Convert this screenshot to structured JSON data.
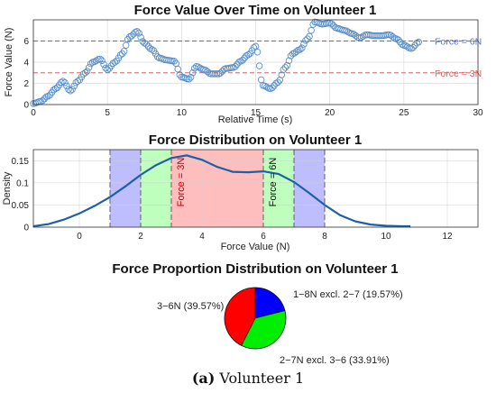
{
  "caption": {
    "tag": "(a)",
    "text": " Volunteer 1"
  },
  "colors": {
    "series": "#5b8fc7",
    "kde": "#1f5fa8",
    "ref_6n": "#5a6fc9",
    "ref_3n": "#e06060",
    "band_outer": "#b3b3ff",
    "band_mid": "#b3ffb3",
    "band_inner": "#ffb3b3",
    "pie_3_6": "#ff0000",
    "pie_1_8": "#0000ff",
    "pie_2_7": "#00ee00"
  },
  "chart_data": [
    {
      "type": "scatter",
      "title": "Force Value Over Time on Volunteer 1",
      "xlabel": "Relative Time (s)",
      "ylabel": "Force Value (N)",
      "xlim": [
        0,
        30
      ],
      "ylim": [
        0,
        8
      ],
      "xticks": [
        "0",
        "5",
        "10",
        "15",
        "20",
        "25",
        "30"
      ],
      "yticks": [
        "0",
        "2",
        "4",
        "6"
      ],
      "grid": true,
      "reference_lines": [
        {
          "y": 6,
          "label": "Force = 6N"
        },
        {
          "y": 3,
          "label": "Force = 3N"
        }
      ],
      "x": [
        0.0,
        0.5,
        1.0,
        1.5,
        2.0,
        2.5,
        3.0,
        3.5,
        4.0,
        4.5,
        5.0,
        5.5,
        6.0,
        6.5,
        7.0,
        7.5,
        8.0,
        8.5,
        9.0,
        9.5,
        10.0,
        10.5,
        11.0,
        11.5,
        12.0,
        12.5,
        13.0,
        13.5,
        14.0,
        14.5,
        15.0,
        15.5,
        16.0,
        16.5,
        17.0,
        17.5,
        18.0,
        18.5,
        19.0,
        19.5,
        20.0,
        20.5,
        21.0,
        21.5,
        22.0,
        22.5,
        23.0,
        23.5,
        24.0,
        24.5,
        25.0,
        25.5,
        26.0
      ],
      "y": [
        0.1,
        0.3,
        0.8,
        1.5,
        2.2,
        1.3,
        2.2,
        3.0,
        4.0,
        4.3,
        3.3,
        4.0,
        4.8,
        6.4,
        6.9,
        5.8,
        5.2,
        4.4,
        4.2,
        4.1,
        2.6,
        2.4,
        3.6,
        3.3,
        2.9,
        2.9,
        3.4,
        3.5,
        4.1,
        4.7,
        5.5,
        1.8,
        1.5,
        2.1,
        3.5,
        4.8,
        5.2,
        6.2,
        7.8,
        7.6,
        7.7,
        7.2,
        7.0,
        6.7,
        6.3,
        6.6,
        6.5,
        6.5,
        6.6,
        6.2,
        5.6,
        5.3,
        5.9
      ]
    },
    {
      "type": "line",
      "title": "Force Distribution on Volunteer 1",
      "xlabel": "Force Value (N)",
      "ylabel": "Density",
      "xlim": [
        -1.5,
        13
      ],
      "ylim": [
        0,
        0.175
      ],
      "xticks": [
        "0",
        "2",
        "4",
        "6",
        "8",
        "10",
        "12"
      ],
      "yticks": [
        "0",
        "0.05",
        "0.1",
        "0.15"
      ],
      "grid": true,
      "bands": [
        {
          "from": 1,
          "to": 2,
          "group": "outer"
        },
        {
          "from": 2,
          "to": 3,
          "group": "mid"
        },
        {
          "from": 3,
          "to": 6,
          "group": "inner"
        },
        {
          "from": 6,
          "to": 7,
          "group": "mid"
        },
        {
          "from": 7,
          "to": 8,
          "group": "outer"
        }
      ],
      "band_labels": [
        {
          "x": 3,
          "text": "Force = 3N"
        },
        {
          "x": 6,
          "text": "Force = 6N"
        }
      ],
      "x": [
        -1.5,
        -1.0,
        -0.5,
        0.0,
        0.5,
        1.0,
        1.5,
        2.0,
        2.5,
        3.0,
        3.5,
        4.0,
        4.5,
        5.0,
        5.5,
        6.0,
        6.5,
        7.0,
        7.5,
        8.0,
        8.5,
        9.0,
        9.5,
        10.0,
        10.5,
        10.8
      ],
      "y": [
        0.002,
        0.007,
        0.017,
        0.031,
        0.048,
        0.068,
        0.092,
        0.118,
        0.14,
        0.156,
        0.162,
        0.152,
        0.136,
        0.125,
        0.124,
        0.126,
        0.12,
        0.102,
        0.077,
        0.05,
        0.027,
        0.013,
        0.006,
        0.003,
        0.002,
        0.002
      ]
    },
    {
      "type": "pie",
      "title": "Force Proportion Distribution on Volunteer 1",
      "slices": [
        {
          "label": "1−8N excl. 2−7 (19.57%)",
          "value": 19.57,
          "color_key": "pie_1_8"
        },
        {
          "label": "2−7N excl. 3−6 (33.91%)",
          "value": 33.91,
          "color_key": "pie_2_7"
        },
        {
          "label": "3−6N (39.57%)",
          "value": 39.57,
          "color_key": "pie_3_6"
        }
      ]
    }
  ]
}
